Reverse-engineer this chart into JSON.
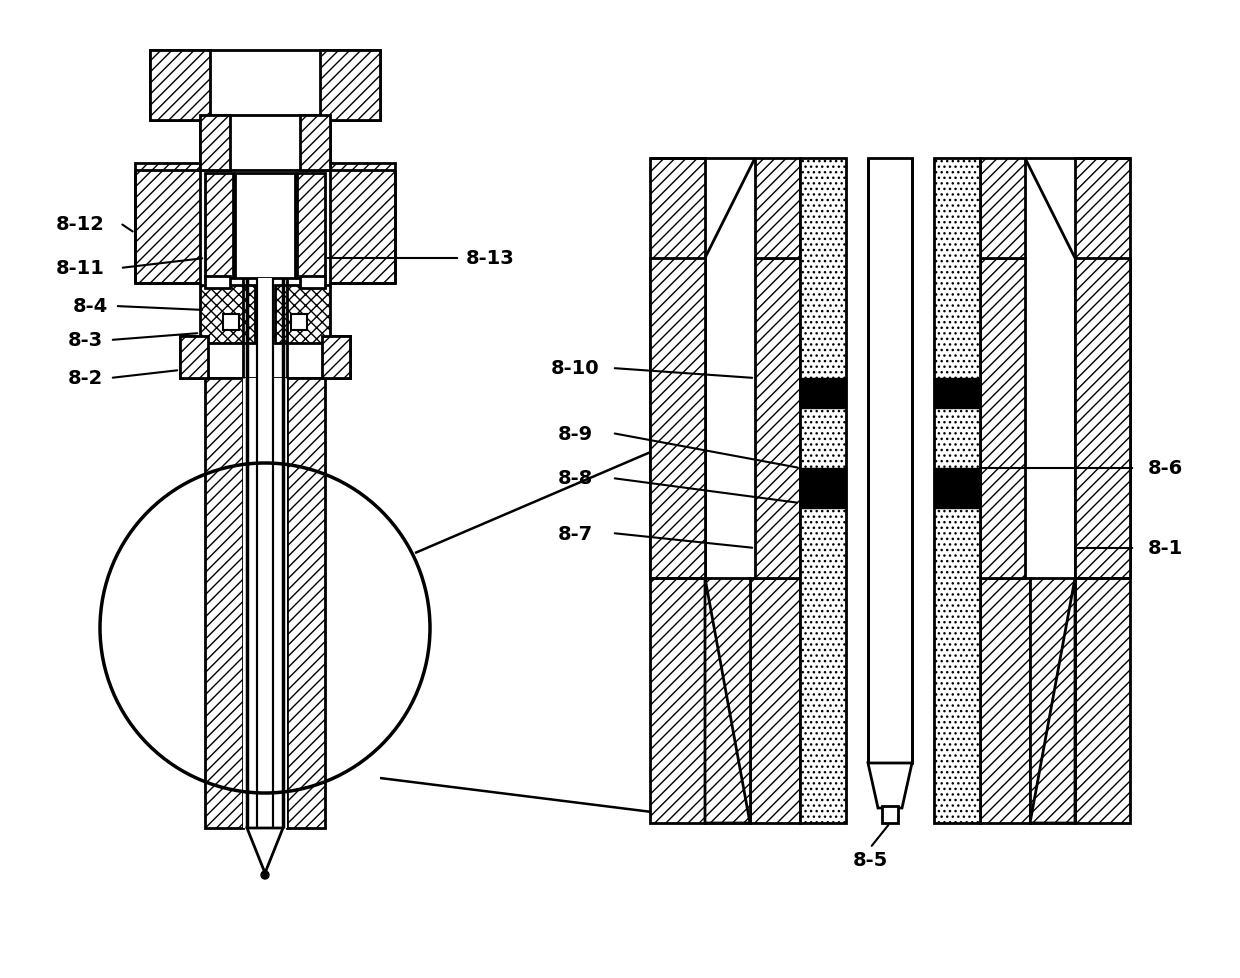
{
  "bg_color": "#ffffff",
  "lw_main": 2.0,
  "lw_thick": 2.5,
  "lw_thin": 1.5,
  "label_fontsize": 14
}
